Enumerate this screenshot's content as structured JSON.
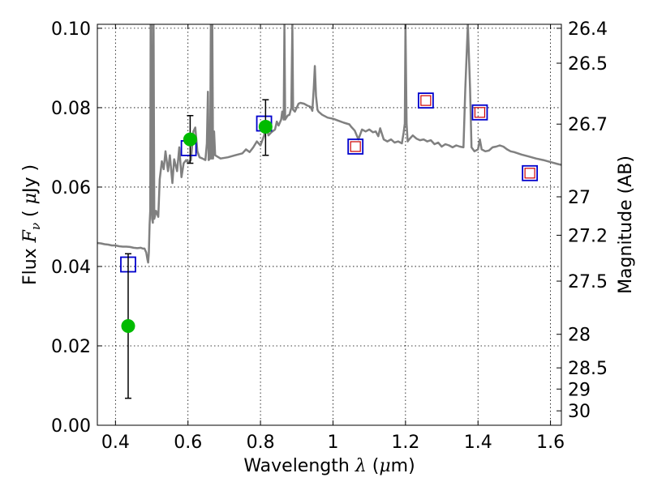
{
  "chart_data": {
    "type": "line",
    "xlabel": {
      "prefix": "Wavelength  ",
      "symbol": "λ",
      "unit_open": " (",
      "unit_mu": "μ",
      "unit_close": "m)"
    },
    "ylabel_left": {
      "prefix": "Flux  ",
      "symbol": "F",
      "sub": "ν",
      "unit_open": "  ( ",
      "unit_mu": "μ",
      "unit_close": "Jy )"
    },
    "ylabel_right": "Magnitude (AB)",
    "xlim": [
      0.35,
      1.63
    ],
    "ylim": [
      0.0,
      0.101
    ],
    "x_ticks": [
      {
        "v": 0.4,
        "label": "0.4"
      },
      {
        "v": 0.6,
        "label": "0.6"
      },
      {
        "v": 0.8,
        "label": "0.8"
      },
      {
        "v": 1.0,
        "label": "1"
      },
      {
        "v": 1.2,
        "label": "1.2"
      },
      {
        "v": 1.4,
        "label": "1.4"
      },
      {
        "v": 1.6,
        "label": "1.6"
      }
    ],
    "y_ticks": [
      {
        "v": 0.0,
        "label": "0.00"
      },
      {
        "v": 0.02,
        "label": "0.02"
      },
      {
        "v": 0.04,
        "label": "0.04"
      },
      {
        "v": 0.06,
        "label": "0.06"
      },
      {
        "v": 0.08,
        "label": "0.08"
      },
      {
        "v": 0.1,
        "label": "0.10"
      }
    ],
    "right_ticks": [
      {
        "v": 26.4,
        "label": "26.4"
      },
      {
        "v": 26.5,
        "label": "26.5"
      },
      {
        "v": 26.7,
        "label": "26.7"
      },
      {
        "v": 27,
        "label": "27"
      },
      {
        "v": 27.2,
        "label": "27.2"
      },
      {
        "v": 27.5,
        "label": "27.5"
      },
      {
        "v": 28,
        "label": "28"
      },
      {
        "v": 28.5,
        "label": "28.5"
      },
      {
        "v": 29,
        "label": "29"
      },
      {
        "v": 30,
        "label": "30"
      }
    ],
    "grid": true,
    "colors": {
      "spectrum": "#808080",
      "observed": "#00bb00",
      "model_box": "#0000cc",
      "model_inner": "#cc0000"
    },
    "series": [
      {
        "kind": "line",
        "points": [
          [
            0.35,
            0.0459
          ],
          [
            0.36,
            0.0458
          ],
          [
            0.37,
            0.0456
          ],
          [
            0.38,
            0.0455
          ],
          [
            0.39,
            0.0453
          ],
          [
            0.4,
            0.0453
          ],
          [
            0.41,
            0.0451
          ],
          [
            0.42,
            0.045
          ],
          [
            0.43,
            0.045
          ],
          [
            0.44,
            0.0449
          ],
          [
            0.45,
            0.0447
          ],
          [
            0.46,
            0.0446
          ],
          [
            0.47,
            0.0447
          ],
          [
            0.475,
            0.0445
          ],
          [
            0.48,
            0.0445
          ],
          [
            0.485,
            0.0435
          ],
          [
            0.488,
            0.0418
          ],
          [
            0.49,
            0.041
          ],
          [
            0.492,
            0.0435
          ],
          [
            0.494,
            0.0505
          ],
          [
            0.496,
            0.054
          ],
          [
            0.497,
            0.101
          ],
          [
            0.499,
            0.101
          ],
          [
            0.501,
            0.052
          ],
          [
            0.503,
            0.051
          ],
          [
            0.505,
            0.101
          ],
          [
            0.507,
            0.052
          ],
          [
            0.512,
            0.054
          ],
          [
            0.518,
            0.0525
          ],
          [
            0.522,
            0.062
          ],
          [
            0.528,
            0.0665
          ],
          [
            0.533,
            0.0645
          ],
          [
            0.538,
            0.069
          ],
          [
            0.545,
            0.064
          ],
          [
            0.55,
            0.068
          ],
          [
            0.557,
            0.061
          ],
          [
            0.562,
            0.067
          ],
          [
            0.57,
            0.064
          ],
          [
            0.576,
            0.07
          ],
          [
            0.582,
            0.0625
          ],
          [
            0.588,
            0.066
          ],
          [
            0.595,
            0.0668
          ],
          [
            0.6,
            0.0662
          ],
          [
            0.608,
            0.0668
          ],
          [
            0.615,
            0.074
          ],
          [
            0.62,
            0.075
          ],
          [
            0.626,
            0.069
          ],
          [
            0.632,
            0.0675
          ],
          [
            0.64,
            0.0672
          ],
          [
            0.648,
            0.0668
          ],
          [
            0.652,
            0.071
          ],
          [
            0.655,
            0.084
          ],
          [
            0.657,
            0.0668
          ],
          [
            0.661,
            0.0672
          ],
          [
            0.663,
            0.101
          ],
          [
            0.665,
            0.0672
          ],
          [
            0.667,
            0.101
          ],
          [
            0.669,
            0.0672
          ],
          [
            0.672,
            0.074
          ],
          [
            0.675,
            0.068
          ],
          [
            0.69,
            0.0672
          ],
          [
            0.71,
            0.0675
          ],
          [
            0.73,
            0.068
          ],
          [
            0.75,
            0.0685
          ],
          [
            0.76,
            0.0695
          ],
          [
            0.77,
            0.0688
          ],
          [
            0.78,
            0.07
          ],
          [
            0.79,
            0.0715
          ],
          [
            0.8,
            0.0705
          ],
          [
            0.81,
            0.073
          ],
          [
            0.815,
            0.076
          ],
          [
            0.818,
            0.075
          ],
          [
            0.822,
            0.073
          ],
          [
            0.83,
            0.0738
          ],
          [
            0.84,
            0.0745
          ],
          [
            0.845,
            0.0765
          ],
          [
            0.85,
            0.0755
          ],
          [
            0.857,
            0.077
          ],
          [
            0.86,
            0.079
          ],
          [
            0.864,
            0.077
          ],
          [
            0.866,
            0.101
          ],
          [
            0.868,
            0.077
          ],
          [
            0.875,
            0.078
          ],
          [
            0.88,
            0.0782
          ],
          [
            0.885,
            0.08
          ],
          [
            0.888,
            0.101
          ],
          [
            0.89,
            0.0795
          ],
          [
            0.895,
            0.079
          ],
          [
            0.9,
            0.08
          ],
          [
            0.905,
            0.081
          ],
          [
            0.91,
            0.0812
          ],
          [
            0.92,
            0.081
          ],
          [
            0.93,
            0.0805
          ],
          [
            0.938,
            0.0802
          ],
          [
            0.943,
            0.0792
          ],
          [
            0.947,
            0.085
          ],
          [
            0.95,
            0.0905
          ],
          [
            0.953,
            0.083
          ],
          [
            0.957,
            0.0795
          ],
          [
            0.96,
            0.079
          ],
          [
            0.97,
            0.0782
          ],
          [
            0.985,
            0.0775
          ],
          [
            1.0,
            0.0772
          ],
          [
            1.015,
            0.0767
          ],
          [
            1.03,
            0.0762
          ],
          [
            1.045,
            0.0758
          ],
          [
            1.05,
            0.0752
          ],
          [
            1.06,
            0.0742
          ],
          [
            1.07,
            0.072
          ],
          [
            1.08,
            0.0745
          ],
          [
            1.09,
            0.074
          ],
          [
            1.1,
            0.0745
          ],
          [
            1.11,
            0.0738
          ],
          [
            1.118,
            0.074
          ],
          [
            1.125,
            0.0728
          ],
          [
            1.13,
            0.0748
          ],
          [
            1.14,
            0.072
          ],
          [
            1.15,
            0.0715
          ],
          [
            1.16,
            0.072
          ],
          [
            1.17,
            0.0712
          ],
          [
            1.18,
            0.0715
          ],
          [
            1.19,
            0.071
          ],
          [
            1.195,
            0.0738
          ],
          [
            1.198,
            0.076
          ],
          [
            1.2,
            0.101
          ],
          [
            1.203,
            0.076
          ],
          [
            1.206,
            0.0715
          ],
          [
            1.21,
            0.072
          ],
          [
            1.22,
            0.073
          ],
          [
            1.23,
            0.0722
          ],
          [
            1.24,
            0.0718
          ],
          [
            1.25,
            0.072
          ],
          [
            1.26,
            0.0715
          ],
          [
            1.27,
            0.0718
          ],
          [
            1.28,
            0.0708
          ],
          [
            1.29,
            0.0712
          ],
          [
            1.3,
            0.0702
          ],
          [
            1.31,
            0.0708
          ],
          [
            1.32,
            0.0705
          ],
          [
            1.33,
            0.07
          ],
          [
            1.34,
            0.0705
          ],
          [
            1.35,
            0.0702
          ],
          [
            1.36,
            0.07
          ],
          [
            1.365,
            0.085
          ],
          [
            1.372,
            0.101
          ],
          [
            1.378,
            0.085
          ],
          [
            1.382,
            0.07
          ],
          [
            1.39,
            0.069
          ],
          [
            1.4,
            0.0695
          ],
          [
            1.405,
            0.072
          ],
          [
            1.41,
            0.0695
          ],
          [
            1.42,
            0.069
          ],
          [
            1.43,
            0.0692
          ],
          [
            1.44,
            0.07
          ],
          [
            1.45,
            0.0702
          ],
          [
            1.46,
            0.0705
          ],
          [
            1.47,
            0.0702
          ],
          [
            1.48,
            0.0695
          ],
          [
            1.49,
            0.069
          ],
          [
            1.5,
            0.0688
          ],
          [
            1.52,
            0.0682
          ],
          [
            1.54,
            0.0677
          ],
          [
            1.56,
            0.0672
          ],
          [
            1.58,
            0.0668
          ],
          [
            1.6,
            0.0663
          ],
          [
            1.62,
            0.0658
          ],
          [
            1.63,
            0.0656
          ]
        ]
      },
      {
        "kind": "observed",
        "points": [
          {
            "x": 0.435,
            "y": 0.025,
            "err_low": 0.0068,
            "err_high": 0.0432
          },
          {
            "x": 0.606,
            "y": 0.072,
            "err_low": 0.066,
            "err_high": 0.078
          },
          {
            "x": 0.814,
            "y": 0.0752,
            "err_low": 0.068,
            "err_high": 0.082
          }
        ]
      },
      {
        "kind": "model_box",
        "points": [
          {
            "x": 0.435,
            "y": 0.0405
          },
          {
            "x": 0.602,
            "y": 0.0698
          },
          {
            "x": 0.81,
            "y": 0.076
          },
          {
            "x": 1.062,
            "y": 0.0702
          },
          {
            "x": 1.256,
            "y": 0.0818
          },
          {
            "x": 1.405,
            "y": 0.0788
          },
          {
            "x": 1.543,
            "y": 0.0635
          }
        ]
      },
      {
        "kind": "model_inner",
        "points": [
          {
            "x": 1.062,
            "y": 0.0702
          },
          {
            "x": 1.256,
            "y": 0.0818
          },
          {
            "x": 1.405,
            "y": 0.0788
          },
          {
            "x": 1.543,
            "y": 0.0635
          }
        ]
      }
    ]
  }
}
